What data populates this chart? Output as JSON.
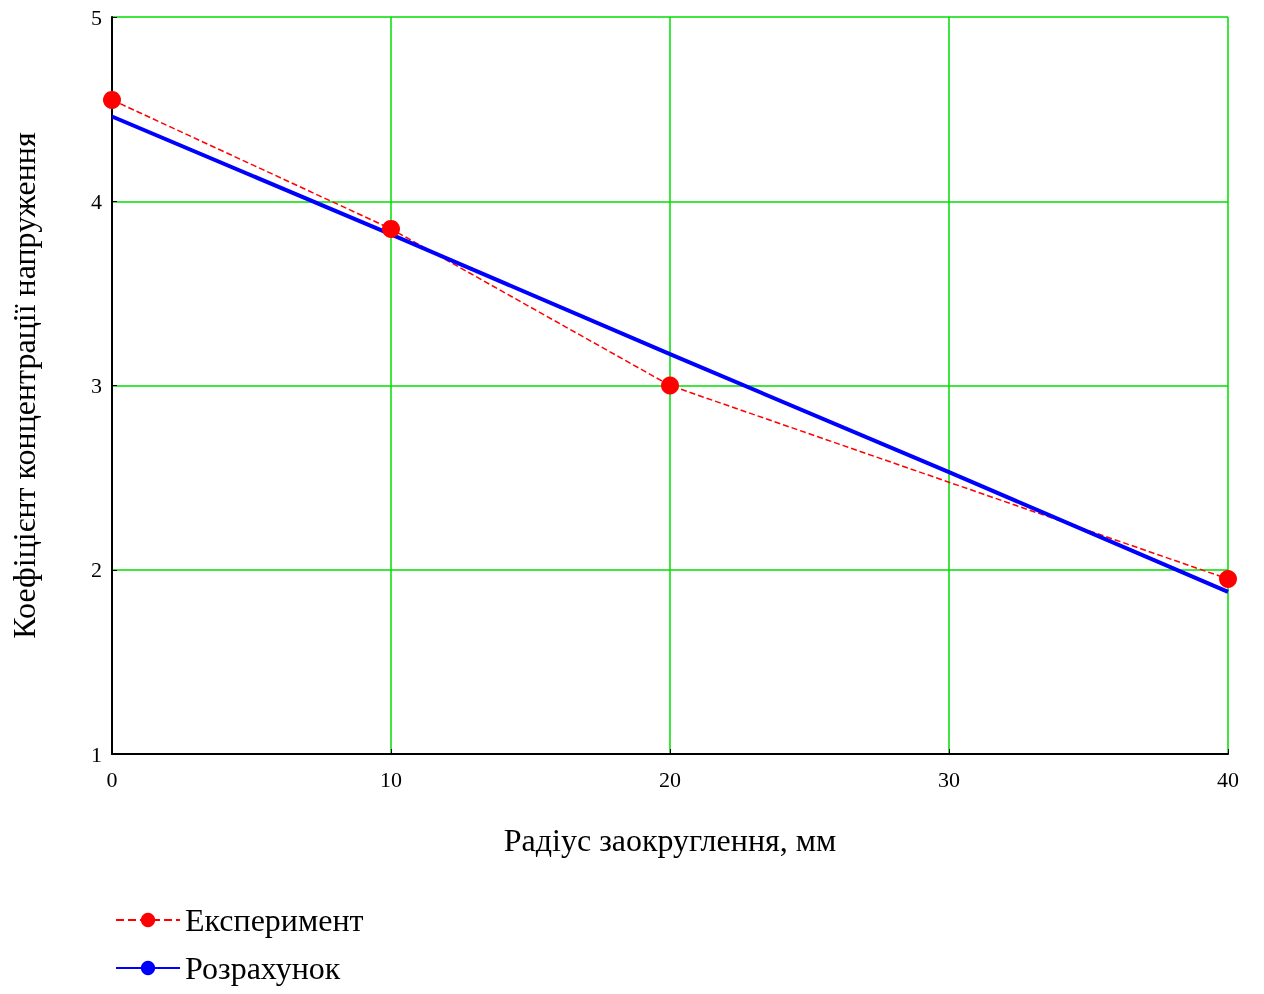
{
  "chart_data": {
    "type": "line",
    "xlabel": "Радіус заокруглення, мм",
    "ylabel": "Коефіцієнт концентрації напруження",
    "xlim": [
      0,
      40
    ],
    "xticks": [
      0,
      10,
      20,
      30,
      40
    ],
    "ylim": [
      1,
      5
    ],
    "yticks": [
      1,
      2,
      3,
      4,
      5
    ],
    "grid": true,
    "legend": "bottom left",
    "series": [
      {
        "name": "Експеримент",
        "color": "#ff0000",
        "x": [
          0,
          10,
          20,
          40
        ],
        "values": [
          4.55,
          3.85,
          3.0,
          1.95
        ],
        "marker": "circle",
        "line_style": "dashed"
      },
      {
        "name": "Розрахунок",
        "color": "#0000ff",
        "x": [
          0,
          10,
          20,
          30,
          40
        ],
        "values": [
          4.46,
          3.82,
          3.17,
          2.53,
          1.88
        ],
        "marker": "none",
        "line_style": "solid"
      }
    ]
  }
}
